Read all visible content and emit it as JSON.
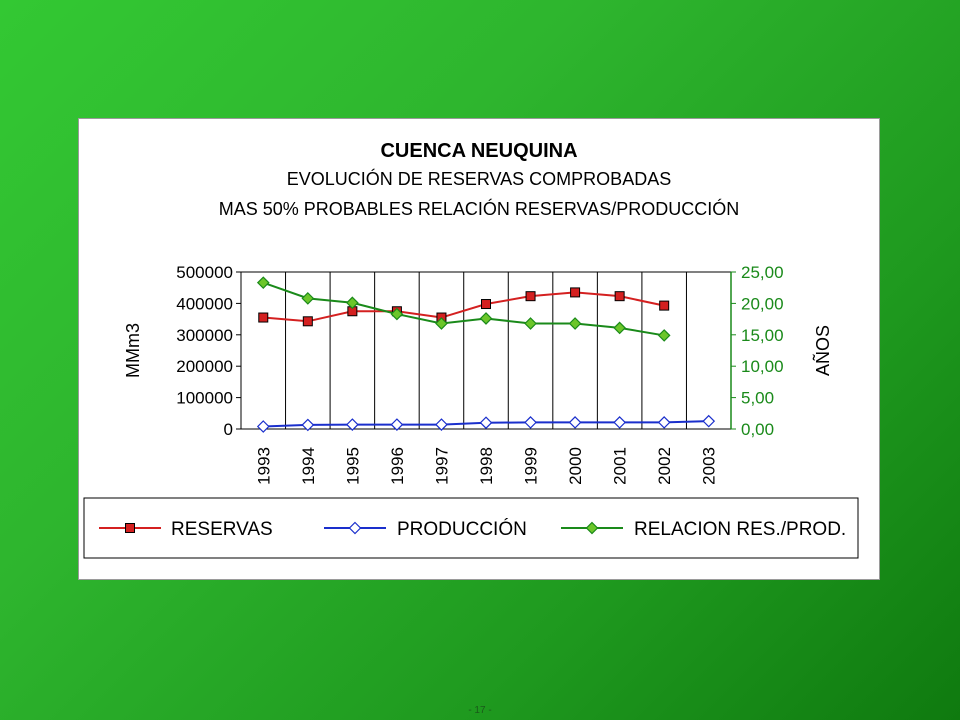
{
  "chart_data": {
    "type": "line",
    "title_lines": [
      "CUENCA NEUQUINA",
      "EVOLUCIÓN DE RESERVAS COMPROBADAS",
      "MAS 50% PROBABLES RELACIÓN RESERVAS/PRODUCCIÓN"
    ],
    "categories": [
      "1993",
      "1994",
      "1995",
      "1996",
      "1997",
      "1998",
      "1999",
      "2000",
      "2001",
      "2002",
      "2003"
    ],
    "y_left": {
      "label": "MMm3",
      "ylim": [
        0,
        500000
      ],
      "ticks": [
        "0",
        "100000",
        "200000",
        "300000",
        "400000",
        "500000"
      ]
    },
    "y_right": {
      "label": "AÑOS",
      "ylim": [
        0,
        25
      ],
      "ticks": [
        "0,00",
        "5,00",
        "10,00",
        "15,00",
        "20,00",
        "25,00"
      ]
    },
    "grid": "vertical",
    "legend_position": "bottom",
    "series": [
      {
        "name": "RESERVAS",
        "axis": "left",
        "color": "#d42020",
        "marker": "square",
        "values": [
          355000,
          343000,
          375000,
          375000,
          355000,
          398000,
          423000,
          435000,
          423000,
          393000,
          null
        ]
      },
      {
        "name": "PRODUCCIÓN",
        "axis": "left",
        "color": "#1a2fcc",
        "marker": "diamond",
        "values": [
          8000,
          13000,
          14000,
          14000,
          14000,
          20000,
          21000,
          21000,
          21000,
          21000,
          25000
        ]
      },
      {
        "name": "RELACION RES./PROD.",
        "axis": "right",
        "color": "#1a8a1a",
        "marker": "diamond",
        "marker_fill": "#6cc62a",
        "values": [
          23.3,
          20.8,
          20.1,
          18.3,
          16.8,
          17.6,
          16.8,
          16.8,
          16.1,
          14.9,
          null
        ]
      }
    ]
  },
  "footer": {
    "page_number": "- 17 -"
  }
}
